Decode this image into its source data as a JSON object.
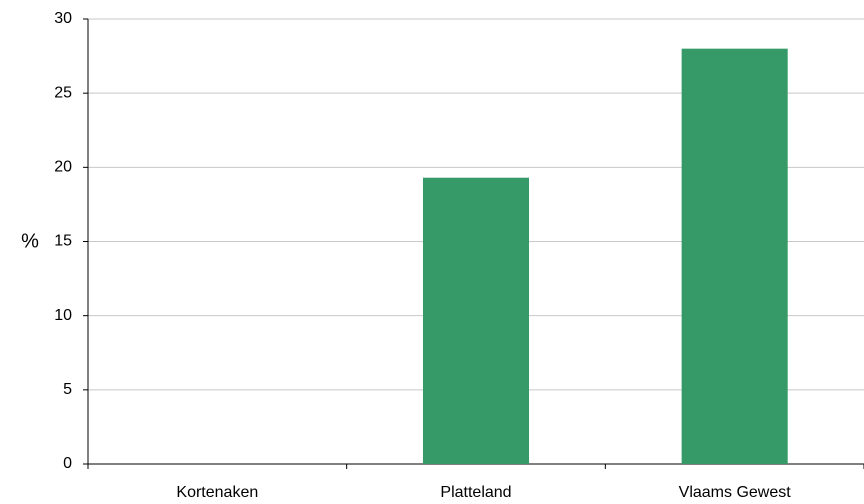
{
  "chart_data": {
    "type": "bar",
    "y_label": "%",
    "categories": [
      "Kortenaken",
      "Platteland",
      "Vlaams Gewest"
    ],
    "values": [
      null,
      19.3,
      28.0
    ],
    "color": "#359a68",
    "ylim": [
      0,
      30
    ],
    "yticks": [
      0,
      5,
      10,
      15,
      20,
      25,
      30
    ],
    "grid": true
  }
}
